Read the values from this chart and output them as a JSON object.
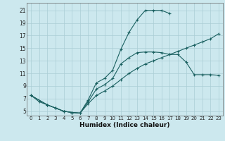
{
  "xlabel": "Humidex (Indice chaleur)",
  "background_color": "#cce8ee",
  "grid_color": "#aacdd5",
  "line_color": "#1a6060",
  "xlim": [
    -0.5,
    23.5
  ],
  "ylim": [
    4.3,
    22.2
  ],
  "xticks": [
    0,
    1,
    2,
    3,
    4,
    5,
    6,
    7,
    8,
    9,
    10,
    11,
    12,
    13,
    14,
    15,
    16,
    17,
    18,
    19,
    20,
    21,
    22,
    23
  ],
  "yticks": [
    5,
    7,
    9,
    11,
    13,
    15,
    17,
    19,
    21
  ],
  "curve1_x": [
    0,
    1,
    2,
    3,
    4,
    5,
    6,
    7,
    8,
    9,
    10,
    11,
    12,
    13,
    14,
    15,
    16,
    17
  ],
  "curve1_y": [
    7.5,
    6.5,
    6.0,
    5.5,
    5.0,
    4.8,
    4.7,
    6.8,
    9.5,
    10.2,
    11.5,
    14.8,
    17.5,
    19.5,
    21.0,
    21.0,
    21.0,
    20.5
  ],
  "curve2_x": [
    0,
    2,
    3,
    4,
    5,
    6,
    7,
    8,
    9,
    10,
    11,
    12,
    13,
    14,
    15,
    16,
    17,
    18,
    19,
    20,
    21,
    22,
    23
  ],
  "curve2_y": [
    7.5,
    6.0,
    5.5,
    5.0,
    4.8,
    4.7,
    6.5,
    8.5,
    9.2,
    10.2,
    12.5,
    13.5,
    14.3,
    14.4,
    14.4,
    14.3,
    14.0,
    14.0,
    12.8,
    10.8,
    10.8,
    10.8,
    10.7
  ],
  "curve3_x": [
    0,
    2,
    3,
    4,
    5,
    6,
    7,
    8,
    9,
    10,
    11,
    12,
    13,
    14,
    15,
    16,
    17,
    18,
    19,
    20,
    21,
    22,
    23
  ],
  "curve3_y": [
    7.5,
    6.0,
    5.5,
    5.0,
    4.8,
    4.7,
    6.2,
    7.5,
    8.2,
    9.0,
    10.0,
    11.0,
    11.8,
    12.5,
    13.0,
    13.5,
    14.0,
    14.5,
    15.0,
    15.5,
    16.0,
    16.5,
    17.3
  ]
}
